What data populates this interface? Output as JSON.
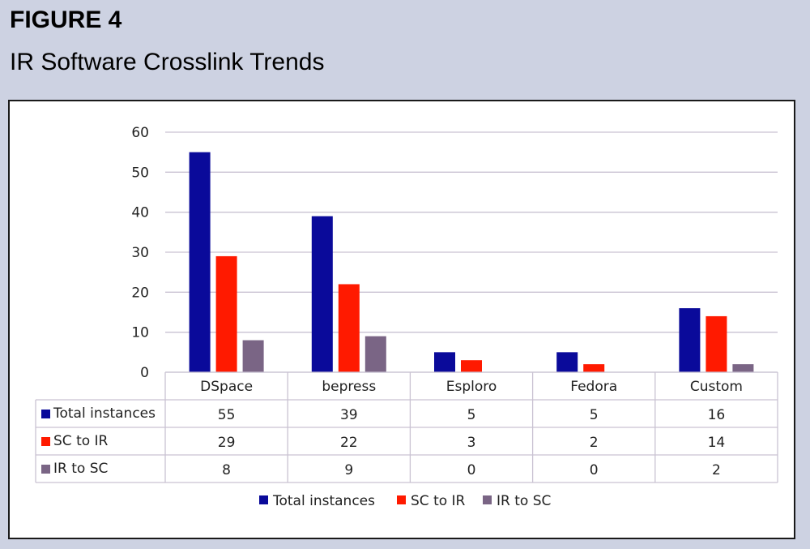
{
  "figure": {
    "label": "FIGURE 4",
    "title": "IR Software Crosslink Trends"
  },
  "chart_data": {
    "type": "bar",
    "categories": [
      "DSpace",
      "bepress",
      "Esploro",
      "Fedora",
      "Custom"
    ],
    "series": [
      {
        "name": "Total instances",
        "color": "#0a0a9a",
        "values": [
          55,
          39,
          5,
          5,
          16
        ]
      },
      {
        "name": "SC to IR",
        "color": "#ff1a00",
        "values": [
          29,
          22,
          3,
          2,
          14
        ]
      },
      {
        "name": "IR to SC",
        "color": "#7a6585",
        "values": [
          8,
          9,
          0,
          0,
          2
        ]
      }
    ],
    "ylim": [
      0,
      60
    ],
    "yticks": [
      0,
      10,
      20,
      30,
      40,
      50,
      60
    ],
    "grid": true,
    "data_table": true,
    "legend": "bottom"
  }
}
